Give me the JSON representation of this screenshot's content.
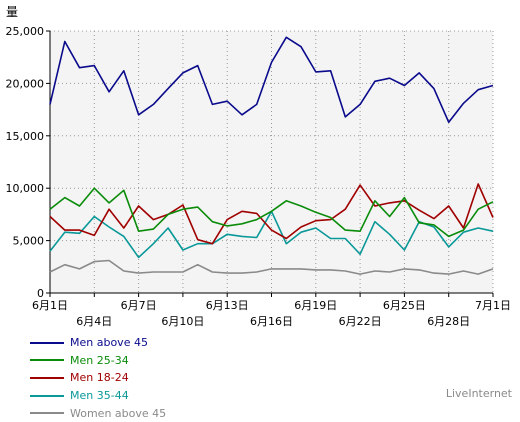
{
  "chart_data": {
    "type": "line",
    "unit_label": "量",
    "ylim": [
      0,
      25000
    ],
    "yticks": [
      "0",
      "5,000",
      "10,000",
      "15,000",
      "20,000",
      "25,000"
    ],
    "x": [
      "6月1日",
      "6月2日",
      "6月3日",
      "6月4日",
      "6月5日",
      "6月6日",
      "6月7日",
      "6月8日",
      "6月9日",
      "6月10日",
      "6月11日",
      "6月12日",
      "6月13日",
      "6月14日",
      "6月15日",
      "6月16日",
      "6月17日",
      "6月18日",
      "6月19日",
      "6月20日",
      "6月21日",
      "6月22日",
      "6月23日",
      "6月24日",
      "6月25日",
      "6月26日",
      "6月27日",
      "6月28日",
      "6月29日",
      "6月30日",
      "7月1日"
    ],
    "xtick_labels": [
      {
        "i": 0,
        "label": "6月1日",
        "row": 0
      },
      {
        "i": 3,
        "label": "6月4日",
        "row": 1
      },
      {
        "i": 6,
        "label": "6月7日",
        "row": 0
      },
      {
        "i": 9,
        "label": "6月10日",
        "row": 1
      },
      {
        "i": 12,
        "label": "6月13日",
        "row": 0
      },
      {
        "i": 15,
        "label": "6月16日",
        "row": 1
      },
      {
        "i": 18,
        "label": "6月19日",
        "row": 0
      },
      {
        "i": 21,
        "label": "6月22日",
        "row": 1
      },
      {
        "i": 24,
        "label": "6月25日",
        "row": 0
      },
      {
        "i": 27,
        "label": "6月28日",
        "row": 1
      },
      {
        "i": 30,
        "label": "7月1日",
        "row": 0
      }
    ],
    "grid": true,
    "series": [
      {
        "name": "Men above 45",
        "color": "#0a0a8c",
        "values": [
          18000,
          24000,
          21500,
          21700,
          19200,
          21200,
          17000,
          18000,
          19500,
          21000,
          21700,
          18000,
          18300,
          17000,
          18000,
          22000,
          24400,
          23500,
          21100,
          21200,
          16800,
          18000,
          20200,
          20500,
          19800,
          21000,
          19500,
          16300,
          18100,
          19400,
          19800
        ]
      },
      {
        "name": "Men 25-34",
        "color": "#0a8c0a",
        "values": [
          8000,
          9100,
          8300,
          10000,
          8600,
          9800,
          5900,
          6100,
          7500,
          8000,
          8200,
          6800,
          6400,
          6600,
          7000,
          7800,
          8800,
          8300,
          7700,
          7200,
          6000,
          5900,
          8800,
          7300,
          9100,
          6700,
          6500,
          5400,
          6000,
          8000,
          8700
        ]
      },
      {
        "name": "Men 18-24",
        "color": "#a00000",
        "values": [
          7300,
          6000,
          6000,
          5500,
          8000,
          6200,
          8300,
          7000,
          7500,
          8400,
          5100,
          4700,
          7000,
          7800,
          7600,
          6000,
          5200,
          6300,
          6900,
          7000,
          8000,
          10300,
          8300,
          8600,
          8800,
          7900,
          7100,
          8300,
          6200,
          10400,
          7200
        ]
      },
      {
        "name": "Men 35-44",
        "color": "#0a9898",
        "values": [
          4000,
          5800,
          5700,
          7300,
          6300,
          5400,
          3400,
          4700,
          6200,
          4100,
          4700,
          4700,
          5600,
          5400,
          5300,
          7800,
          4700,
          5800,
          6200,
          5200,
          5200,
          3700,
          6800,
          5600,
          4100,
          6800,
          6300,
          4400,
          5800,
          6200,
          5900
        ]
      },
      {
        "name": "Women above 45",
        "color": "#8a8a8a",
        "values": [
          2000,
          2700,
          2300,
          3000,
          3100,
          2100,
          1900,
          2000,
          2000,
          2000,
          2700,
          2000,
          1900,
          1900,
          2000,
          2300,
          2300,
          2300,
          2200,
          2200,
          2100,
          1800,
          2100,
          2000,
          2300,
          2200,
          1900,
          1800,
          2100,
          1800,
          2300
        ]
      }
    ]
  },
  "brand": "LiveInternet"
}
